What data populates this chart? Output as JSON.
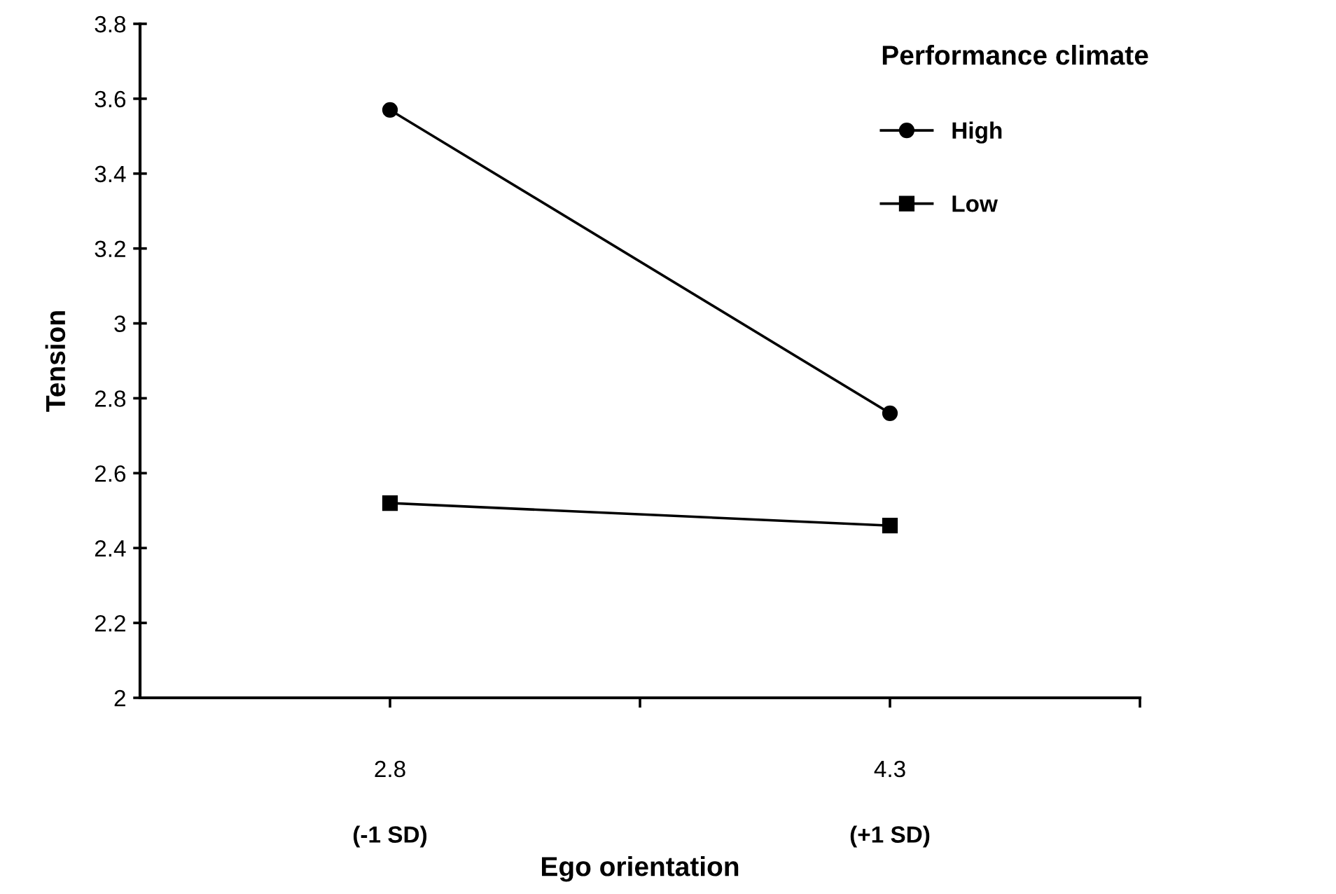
{
  "chart_data": {
    "type": "line",
    "xlabel": "Ego orientation",
    "ylabel": "Tension",
    "legend_title": "Performance climate",
    "categories": [
      "2.8",
      "4.3"
    ],
    "series": [
      {
        "name": "High",
        "color": "#000000",
        "values": [
          3.57,
          2.76
        ],
        "marker": "circle"
      },
      {
        "name": "Low",
        "color": "#000000",
        "values": [
          2.52,
          2.46
        ],
        "marker": "square"
      }
    ],
    "ylim": [
      2,
      3.8
    ],
    "yticks": [
      2,
      2.2,
      2.4,
      2.6,
      2.8,
      3,
      3.2,
      3.4,
      3.6,
      3.8
    ],
    "annotations": [
      "(-1 SD)",
      "(+1 SD)"
    ],
    "grid": false,
    "legend": "top right",
    "line_style": "solid"
  }
}
